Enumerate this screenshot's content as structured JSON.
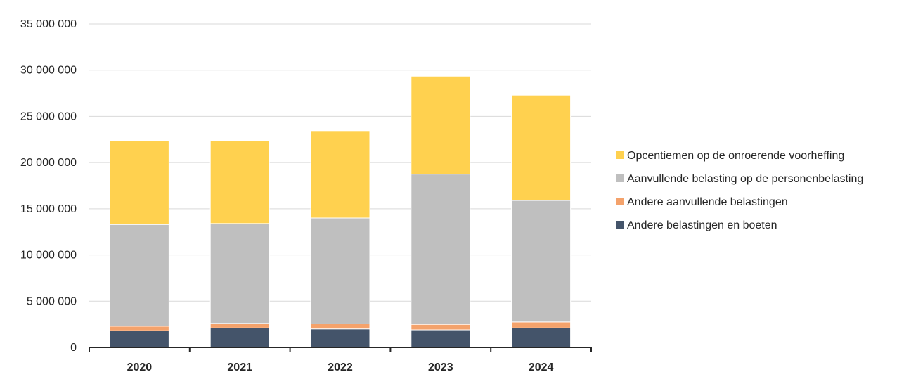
{
  "chart_data": {
    "type": "bar",
    "stacked": true,
    "categories": [
      "2020",
      "2021",
      "2022",
      "2023",
      "2024"
    ],
    "series": [
      {
        "name": "Andere belastingen en boeten",
        "color": "#44546A",
        "values": [
          1800000,
          2100000,
          2000000,
          1900000,
          2100000
        ]
      },
      {
        "name": "Andere aanvullende belastingen",
        "color": "#F4A26B",
        "values": [
          500000,
          500000,
          550000,
          600000,
          650000
        ]
      },
      {
        "name": "Aanvullende belasting op de personenbelasting",
        "color": "#BFBFBF",
        "values": [
          11000000,
          10800000,
          11450000,
          16250000,
          13150000
        ]
      },
      {
        "name": "Opcentiemen op de onroerende voorheffing",
        "color": "#FFD14F",
        "values": [
          9100000,
          8950000,
          9450000,
          10600000,
          11400000
        ]
      }
    ],
    "ylim": [
      0,
      35000000
    ],
    "yticks": [
      0,
      5000000,
      10000000,
      15000000,
      20000000,
      25000000,
      30000000,
      35000000
    ],
    "ytick_labels": [
      "0",
      "5 000 000",
      "10 000 000",
      "15 000 000",
      "20 000 000",
      "25 000 000",
      "30 000 000",
      "35 000 000"
    ],
    "title": "",
    "xlabel": "",
    "ylabel": "",
    "grid": true,
    "legend_position": "right"
  }
}
